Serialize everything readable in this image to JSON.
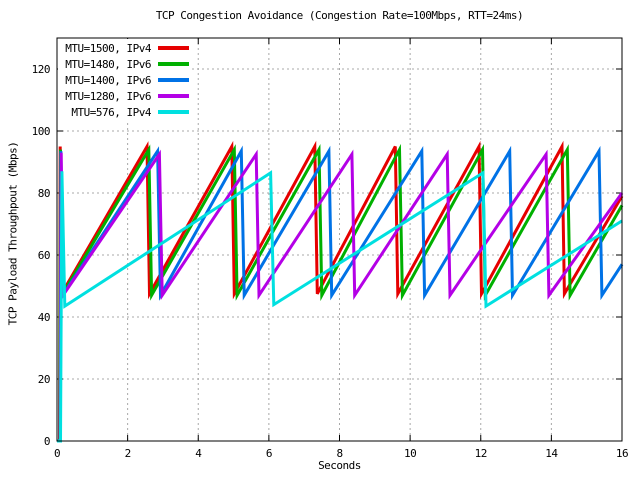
{
  "chart_data": {
    "type": "line",
    "title": "TCP Congestion Avoidance (Congestion Rate=100Mbps, RTT=24ms)",
    "xlabel": "Seconds",
    "ylabel": "TCP Payload Throughpout (Mbps)",
    "xlim": [
      0,
      16
    ],
    "ylim": [
      0,
      130
    ],
    "xticks": [
      0,
      2,
      4,
      6,
      8,
      10,
      12,
      14,
      16
    ],
    "yticks": [
      0,
      20,
      40,
      60,
      80,
      100,
      120
    ],
    "grid": true,
    "grid_style": "dashed",
    "legend_position": "top-left",
    "colors": {
      "background": "#ffffff",
      "border": "#000000",
      "grid": "#a8a8a8",
      "text": "#000000"
    },
    "series": [
      {
        "label": "MTU=1500, IPv4",
        "color": "#e60000",
        "points": [
          [
            0,
            0
          ],
          [
            0.07,
            0
          ],
          [
            0.09,
            95
          ],
          [
            0.13,
            47.5
          ],
          [
            2.55,
            95
          ],
          [
            2.62,
            47.5
          ],
          [
            4.95,
            95
          ],
          [
            5.02,
            47.5
          ],
          [
            7.3,
            95
          ],
          [
            7.37,
            47.5
          ],
          [
            9.58,
            95
          ],
          [
            9.65,
            47.5
          ],
          [
            11.95,
            95
          ],
          [
            12.02,
            47.5
          ],
          [
            14.3,
            95
          ],
          [
            14.37,
            47.5
          ],
          [
            16,
            79
          ]
        ]
      },
      {
        "label": "MTU=1480, IPv6",
        "color": "#00b000",
        "points": [
          [
            0,
            0
          ],
          [
            0.08,
            0
          ],
          [
            0.1,
            94
          ],
          [
            0.14,
            47
          ],
          [
            2.6,
            94
          ],
          [
            2.68,
            47
          ],
          [
            5.02,
            94
          ],
          [
            5.1,
            47
          ],
          [
            7.42,
            94
          ],
          [
            7.5,
            47
          ],
          [
            9.7,
            94
          ],
          [
            9.78,
            47
          ],
          [
            12.05,
            94
          ],
          [
            12.13,
            47
          ],
          [
            14.45,
            94
          ],
          [
            14.53,
            47
          ],
          [
            16,
            76
          ]
        ]
      },
      {
        "label": "MTU=1400, IPv6",
        "color": "#0072e6",
        "points": [
          [
            0,
            0
          ],
          [
            0.09,
            0
          ],
          [
            0.11,
            93.5
          ],
          [
            0.16,
            47
          ],
          [
            2.85,
            93.5
          ],
          [
            2.93,
            47
          ],
          [
            5.22,
            93.5
          ],
          [
            5.3,
            47
          ],
          [
            7.7,
            93.5
          ],
          [
            7.78,
            47
          ],
          [
            10.33,
            93.5
          ],
          [
            10.41,
            47
          ],
          [
            12.82,
            93.5
          ],
          [
            12.9,
            47
          ],
          [
            15.35,
            93.5
          ],
          [
            15.43,
            47
          ],
          [
            16,
            57
          ]
        ]
      },
      {
        "label": "MTU=1280, IPv6",
        "color": "#b400e6",
        "points": [
          [
            0,
            0
          ],
          [
            0.09,
            0
          ],
          [
            0.12,
            93
          ],
          [
            0.17,
            47
          ],
          [
            2.9,
            92.5
          ],
          [
            2.98,
            47
          ],
          [
            5.64,
            92.5
          ],
          [
            5.72,
            47
          ],
          [
            8.35,
            92.5
          ],
          [
            8.43,
            47
          ],
          [
            11.05,
            92.5
          ],
          [
            11.13,
            47
          ],
          [
            13.85,
            92.5
          ],
          [
            13.93,
            47
          ],
          [
            16,
            80
          ]
        ]
      },
      {
        "label": "MTU=576, IPv4",
        "color": "#00e0e0",
        "points": [
          [
            0,
            0
          ],
          [
            0.1,
            0
          ],
          [
            0.14,
            87
          ],
          [
            0.22,
            43.5
          ],
          [
            6.05,
            86.5
          ],
          [
            6.14,
            44
          ],
          [
            12.06,
            86.5
          ],
          [
            12.15,
            43.5
          ],
          [
            16,
            71
          ]
        ]
      }
    ]
  }
}
